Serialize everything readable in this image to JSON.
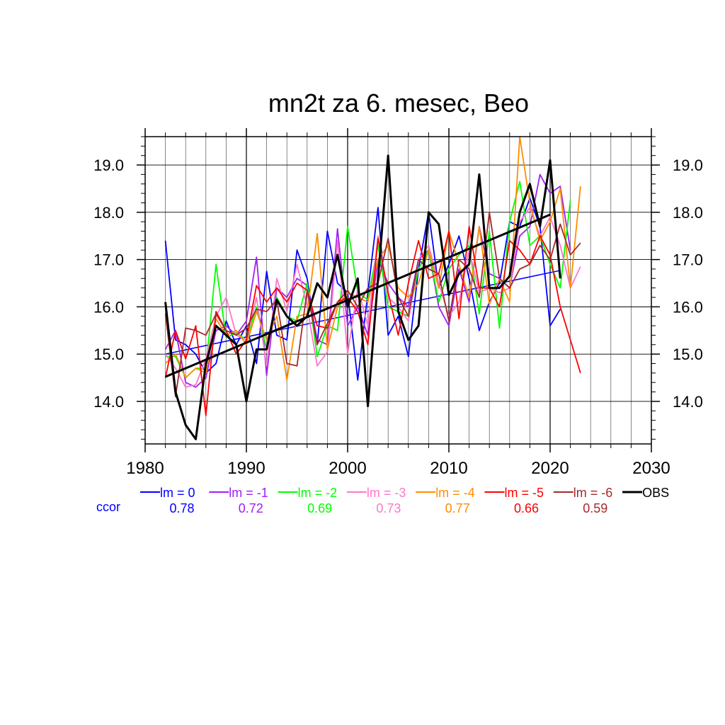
{
  "chart_data": {
    "type": "line",
    "title": "mn2t za 6. mesec, Beo",
    "xlabel": "",
    "ylabel": "",
    "xlim": [
      1980,
      2030
    ],
    "ylim": [
      13.1,
      19.6
    ],
    "xticks": [
      "1980",
      "1990",
      "2000",
      "2010",
      "2020",
      "2030"
    ],
    "yticks": [
      "14.0",
      "15.0",
      "16.0",
      "17.0",
      "18.0",
      "19.0"
    ],
    "grid": true,
    "legend_position": "bottom",
    "ccor_label": "ccor",
    "series": [
      {
        "name": "lm = 0",
        "color": "#0000ff",
        "ccor": "0.78",
        "start": 1982,
        "values": [
          17.4,
          15.3,
          15.2,
          15.0,
          14.6,
          14.8,
          15.7,
          15.2,
          15.6,
          14.8,
          16.75,
          15.4,
          15.3,
          17.2,
          16.6,
          15.2,
          17.6,
          16.5,
          16.3,
          14.45,
          16.3,
          18.1,
          15.4,
          15.8,
          14.95,
          16.8,
          18.0,
          16.4,
          16.9,
          17.5,
          16.6,
          15.5,
          16.1,
          16.5,
          17.8,
          17.7,
          18.3,
          17.7,
          15.6,
          15.95
        ],
        "trend": [
          1982,
          15.0,
          2021,
          16.77
        ]
      },
      {
        "name": "lm = -1",
        "color": "#a020f0",
        "ccor": "0.72",
        "start": 1982,
        "values": [
          15.1,
          15.5,
          14.4,
          14.3,
          14.5,
          15.5,
          15.6,
          15.4,
          15.7,
          17.05,
          14.55,
          16.4,
          16.2,
          16.6,
          16.45,
          15.3,
          15.2,
          17.65,
          15.6,
          16.0,
          15.4,
          17.0,
          16.5,
          16.2,
          16.0,
          17.0,
          17.2,
          16.0,
          15.6,
          16.8,
          16.1,
          17.7,
          16.7,
          16.6,
          16.4,
          17.5,
          17.7,
          18.8,
          18.4,
          18.55,
          17.2
        ],
        "trend": null
      },
      {
        "name": "lm = -2",
        "color": "#00ff00",
        "ccor": "0.69",
        "start": 1982,
        "values": [
          14.95,
          14.95,
          14.5,
          14.7,
          14.7,
          16.9,
          15.35,
          15.45,
          15.3,
          16.0,
          15.1,
          16.2,
          15.8,
          15.7,
          16.5,
          14.95,
          15.6,
          15.5,
          17.7,
          16.3,
          16.15,
          17.3,
          16.0,
          15.9,
          15.8,
          16.8,
          17.2,
          16.1,
          16.8,
          17.1,
          17.3,
          15.85,
          17.6,
          15.55,
          17.8,
          18.65,
          17.3,
          17.5,
          16.9,
          16.4,
          18.25
        ],
        "trend": null
      },
      {
        "name": "lm = -3",
        "color": "#ff77cc",
        "ccor": "0.73",
        "start": 1982,
        "values": [
          15.0,
          14.7,
          14.3,
          14.35,
          14.9,
          15.8,
          16.2,
          15.4,
          15.3,
          16.2,
          14.75,
          16.6,
          15.9,
          16.9,
          16.0,
          14.75,
          15.05,
          17.4,
          15.0,
          16.4,
          15.6,
          17.5,
          16.2,
          16.0,
          15.7,
          17.0,
          17.3,
          16.5,
          15.8,
          16.1,
          17.2,
          16.3,
          16.4,
          16.3,
          16.4,
          17.8,
          18.1,
          17.5,
          17.9,
          17.3,
          16.4,
          16.85
        ],
        "trend": null
      },
      {
        "name": "lm = -4",
        "color": "#ff8c00",
        "ccor": "0.77",
        "start": 1982,
        "values": [
          14.8,
          15.0,
          14.5,
          14.7,
          14.6,
          15.75,
          15.4,
          15.5,
          15.2,
          15.9,
          15.3,
          15.8,
          14.45,
          15.8,
          15.85,
          17.55,
          15.1,
          16.0,
          16.3,
          16.2,
          16.1,
          17.0,
          17.3,
          16.4,
          16.2,
          16.5,
          17.2,
          16.4,
          17.6,
          16.9,
          16.2,
          17.7,
          16.05,
          16.6,
          16.1,
          19.6,
          18.2,
          17.4,
          17.8,
          18.5,
          16.4,
          18.55
        ],
        "trend": null
      },
      {
        "name": "lm = -5",
        "color": "#ff0000",
        "ccor": "0.66",
        "start": 1982,
        "values": [
          14.5,
          15.5,
          14.9,
          15.6,
          13.7,
          15.9,
          15.5,
          15.0,
          15.3,
          16.45,
          16.1,
          16.4,
          16.1,
          16.5,
          16.35,
          15.6,
          15.55,
          16.1,
          16.2,
          15.9,
          15.2,
          17.45,
          16.3,
          15.4,
          16.5,
          17.4,
          16.6,
          16.7,
          17.6,
          15.75,
          17.7,
          16.4,
          16.4,
          16.0,
          17.4,
          17.2,
          16.9,
          17.5,
          17.1,
          16.0,
          15.3,
          14.6
        ],
        "trend": null
      },
      {
        "name": "lm = -6",
        "color": "#a52a2a",
        "ccor": "0.59",
        "start": 1982,
        "values": [
          15.85,
          14.1,
          15.55,
          15.5,
          15.4,
          15.85,
          15.5,
          15.4,
          15.55,
          15.95,
          15.9,
          16.15,
          14.8,
          14.75,
          16.35,
          15.2,
          15.65,
          16.1,
          16.35,
          16.0,
          16.4,
          16.5,
          17.45,
          16.2,
          15.8,
          17.0,
          16.8,
          16.7,
          15.7,
          17.0,
          16.8,
          16.2,
          18.0,
          16.6,
          16.4,
          16.8,
          16.9,
          17.3,
          17.0,
          17.75,
          17.1,
          17.35
        ],
        "trend": null
      },
      {
        "name": "OBS",
        "color": "#000000",
        "ccor": "",
        "start": 1982,
        "values": [
          16.1,
          14.2,
          13.5,
          13.2,
          14.8,
          15.6,
          15.4,
          15.2,
          14.0,
          15.1,
          15.1,
          16.15,
          15.8,
          15.6,
          15.8,
          16.5,
          16.2,
          17.1,
          16.0,
          16.6,
          13.9,
          16.6,
          19.2,
          15.9,
          15.3,
          15.6,
          18.0,
          17.75,
          16.25,
          16.7,
          16.9,
          18.8,
          16.4,
          16.4,
          16.65,
          18.0,
          18.6,
          17.7,
          19.1,
          16.6
        ],
        "trend": [
          1982,
          14.52,
          2020,
          17.95
        ]
      }
    ]
  }
}
